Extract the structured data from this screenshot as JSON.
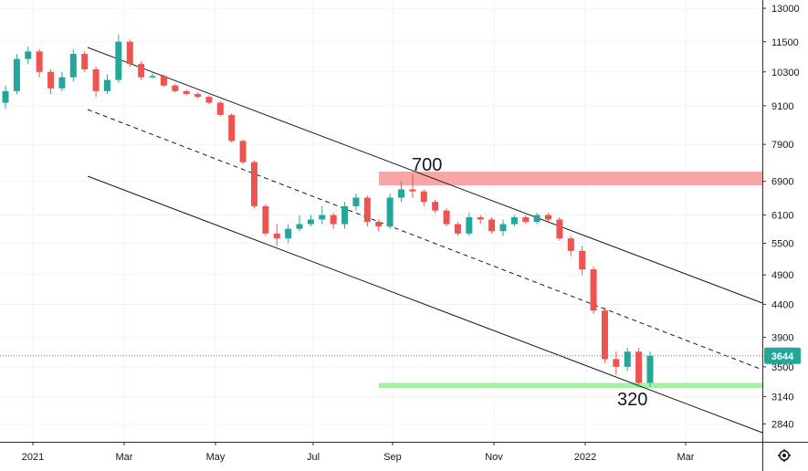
{
  "chart_data": {
    "type": "candlestick",
    "y_scale": "log",
    "ylim": [
      2660,
      13400
    ],
    "y_ticks": [
      "13000",
      "11500",
      "10300",
      "9100",
      "7900",
      "6900",
      "6100",
      "5500",
      "4900",
      "4400",
      "3900",
      "3500",
      "3140",
      "2840"
    ],
    "x_ticks": [
      "2021",
      "Mar",
      "May",
      "Jul",
      "Sep",
      "Nov",
      "2022",
      "Mar"
    ],
    "current_price": {
      "label": "3644",
      "value": 3644,
      "color": "#26a69a"
    },
    "colors": {
      "up": "#26a69a",
      "down": "#ef5350",
      "grid": "#f0f3fa",
      "axis": "#2a2e39",
      "line": "#131722"
    },
    "series": {
      "open": [
        9200,
        9600,
        10800,
        11100,
        10300,
        9700,
        10100,
        11000,
        10400,
        9600,
        10000,
        11500,
        10600,
        10100,
        10150,
        9800,
        9600,
        9500,
        9400,
        9200,
        8800,
        8000,
        7400,
        6300,
        5700,
        5600,
        5800,
        5900,
        6000,
        6100,
        5900,
        6300,
        6500,
        5950,
        5850,
        6500,
        6700,
        6650,
        6400,
        6200,
        5900,
        5700,
        6050,
        6000,
        5750,
        5900,
        6050,
        5950,
        6100,
        6000,
        5600,
        5350,
        5000,
        4300,
        3600,
        3500,
        3700,
        3300
      ],
      "close": [
        9600,
        10800,
        11100,
        10300,
        9700,
        10100,
        11000,
        10400,
        9600,
        10000,
        11500,
        10600,
        10100,
        10150,
        9800,
        9600,
        9500,
        9400,
        9200,
        8800,
        8000,
        7400,
        6300,
        5700,
        5600,
        5800,
        5900,
        6000,
        6100,
        5900,
        6300,
        6500,
        5950,
        5850,
        6500,
        6700,
        6650,
        6400,
        6200,
        5900,
        5700,
        6050,
        6000,
        5750,
        5900,
        6050,
        5950,
        6100,
        6000,
        5600,
        5350,
        5000,
        4300,
        3600,
        3500,
        3700,
        3300,
        3644
      ],
      "high": [
        9800,
        11000,
        11300,
        11200,
        10400,
        10300,
        11200,
        11100,
        10500,
        10200,
        11800,
        11600,
        10700,
        10300,
        10200,
        9850,
        9650,
        9550,
        9450,
        9250,
        8850,
        8050,
        7450,
        6350,
        5900,
        5900,
        6100,
        6100,
        6300,
        6150,
        6400,
        6600,
        6550,
        6000,
        6600,
        6900,
        7100,
        6700,
        6450,
        6250,
        5950,
        6150,
        6100,
        6050,
        6000,
        6100,
        6100,
        6150,
        6150,
        6050,
        5650,
        5450,
        5050,
        4350,
        3700,
        3750,
        3750,
        3700
      ],
      "low": [
        9000,
        9500,
        10600,
        10100,
        9500,
        9600,
        9950,
        10300,
        9400,
        9500,
        9900,
        10500,
        10000,
        10050,
        9750,
        9550,
        9450,
        9350,
        9150,
        8750,
        7950,
        7350,
        6250,
        5650,
        5450,
        5500,
        5750,
        5850,
        5900,
        5800,
        5800,
        6200,
        5850,
        5750,
        5800,
        6400,
        6500,
        6300,
        6150,
        5850,
        5650,
        5650,
        5900,
        5700,
        5650,
        5850,
        5900,
        5900,
        5950,
        5550,
        5250,
        4900,
        4250,
        3550,
        3400,
        3450,
        3250,
        3250
      ]
    },
    "annotations": [
      {
        "text": "700",
        "type": "resistance",
        "range": [
          6800,
          7150
        ],
        "color": "#f8a5a5"
      },
      {
        "text": "320",
        "type": "support",
        "range": [
          3240,
          3300
        ],
        "color": "#a5f0a5"
      }
    ]
  }
}
